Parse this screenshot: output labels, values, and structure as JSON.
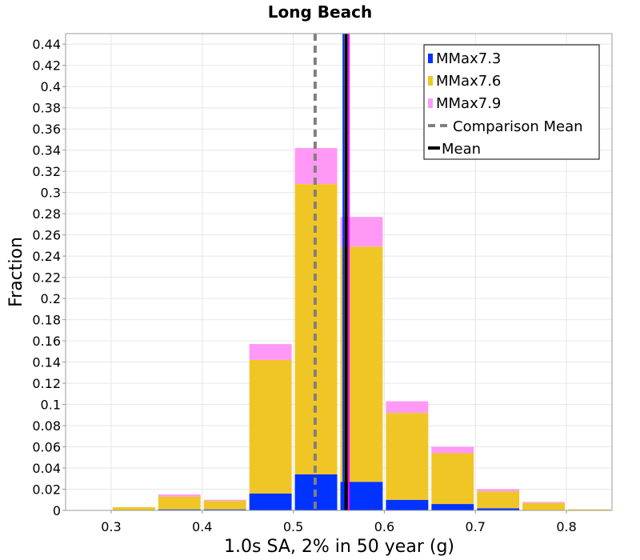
{
  "chart_data": {
    "type": "bar",
    "stacked": true,
    "title": "Long Beach",
    "xlabel": "1.0s SA, 2% in 50 year (g)",
    "ylabel": "Fraction",
    "xlim": [
      0.25,
      0.85
    ],
    "ylim": [
      0,
      0.45
    ],
    "x_ticks": [
      0.3,
      0.4,
      0.5,
      0.6,
      0.7,
      0.8
    ],
    "y_ticks": [
      0,
      0.02,
      0.04,
      0.06,
      0.08,
      0.1,
      0.12,
      0.14,
      0.16,
      0.18,
      0.2,
      0.22,
      0.24,
      0.26,
      0.28,
      0.3,
      0.32,
      0.34,
      0.36,
      0.38,
      0.4,
      0.42,
      0.44
    ],
    "grid": true,
    "legend_position": "top-right",
    "bin_width": 0.05,
    "bin_centers": [
      0.275,
      0.325,
      0.375,
      0.425,
      0.475,
      0.525,
      0.575,
      0.625,
      0.675,
      0.725,
      0.775,
      0.825
    ],
    "series": [
      {
        "name": "MMax7.3",
        "color": "#0033ff",
        "values": [
          0.0,
          0.0,
          0.001,
          0.001,
          0.016,
          0.034,
          0.027,
          0.01,
          0.006,
          0.002,
          0.0,
          0.0
        ]
      },
      {
        "name": "MMax7.6",
        "color": "#f0c626",
        "values": [
          0.0,
          0.003,
          0.012,
          0.008,
          0.126,
          0.274,
          0.222,
          0.082,
          0.048,
          0.016,
          0.007,
          0.001
        ]
      },
      {
        "name": "MMax7.9",
        "color": "#ff99f5",
        "values": [
          0.0,
          0.0,
          0.002,
          0.001,
          0.015,
          0.034,
          0.028,
          0.011,
          0.006,
          0.002,
          0.001,
          0.0
        ]
      }
    ],
    "lines": [
      {
        "name": "Comparison Mean",
        "x": 0.524,
        "color": "#808080",
        "style": "dashed"
      },
      {
        "name": "Mean",
        "x": 0.558,
        "color": "#000000",
        "style": "solid"
      }
    ],
    "extra_vertical_lines": [
      {
        "x": 0.555,
        "color": "#0033ff"
      },
      {
        "x": 0.561,
        "color": "#ff00ff"
      }
    ]
  }
}
